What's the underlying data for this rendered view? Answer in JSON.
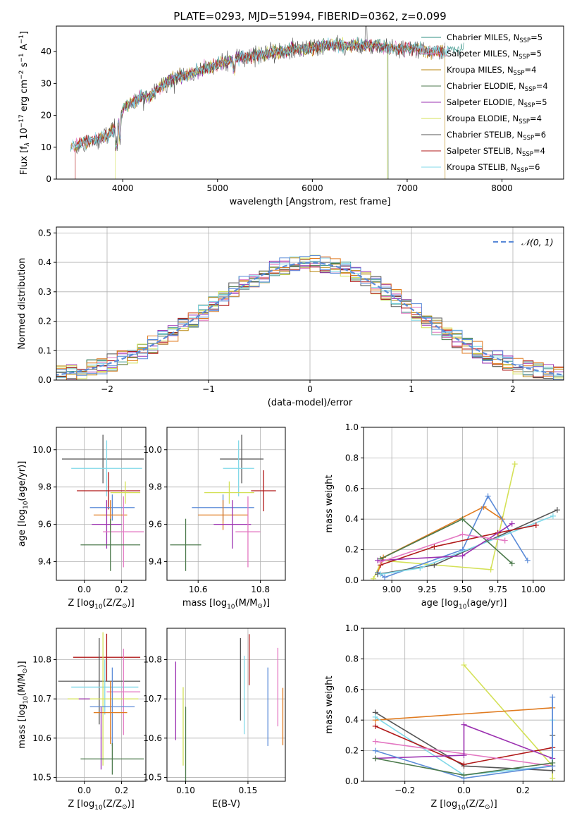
{
  "figure_title": "PLATE=0293, MJD=51994, FIBERID=0362, z=0.099",
  "colors": {
    "Chabrier MILES": "#2f8f83",
    "Salpeter MILES": "#e377c2",
    "Kroupa MILES": "#b8860b",
    "Chabrier ELODIE": "#4c7a4c",
    "Salpeter ELODIE": "#9b30b0",
    "Kroupa ELODIE": "#d4e157",
    "Chabrier STELIB": "#555555",
    "Salpeter STELIB": "#b01818",
    "Kroupa STELIB": "#80d8e8",
    "blue": "#5b8bd8",
    "orange": "#e07b20",
    "gaussian": "#5b8bd8"
  },
  "chart_data": [
    {
      "type": "line",
      "title": "PLATE=0293, MJD=51994, FIBERID=0362, z=0.099",
      "xlabel": "wavelength [Angstrom, rest frame]",
      "ylabel": "Flux [f_λ 10^-17 erg cm^-2 s^-1 A^-1]",
      "xlim": [
        3300,
        8650
      ],
      "ylim": [
        0,
        48
      ],
      "xticks": [
        "4000",
        "5000",
        "6000",
        "7000",
        "8000"
      ],
      "yticks": [
        "0",
        "10",
        "20",
        "30",
        "40"
      ],
      "legend_position": "top-right",
      "spectrum_anchor": {
        "x": [
          3450,
          3550,
          3650,
          3750,
          3850,
          3950,
          4000,
          4100,
          4200,
          4300,
          4400,
          4500,
          4600,
          4700,
          4800,
          4900,
          5000,
          5100,
          5200,
          5300,
          5400,
          5500,
          5600,
          5700,
          5800,
          5900,
          6000,
          6100,
          6200,
          6300,
          6400,
          6500,
          6600,
          6700,
          6800,
          6900,
          7000,
          7100,
          7200,
          7300,
          7400,
          7500,
          7600
        ],
        "y": [
          10,
          11,
          12,
          13,
          14,
          17,
          22,
          24,
          26,
          26,
          29,
          31,
          32,
          33,
          34,
          35,
          36,
          37,
          38,
          38,
          39,
          39,
          40,
          40,
          41,
          41,
          41,
          42,
          42,
          42,
          42,
          42,
          42,
          42,
          41,
          41,
          41,
          41,
          40,
          40,
          40,
          41,
          41
        ]
      },
      "series": [
        {
          "name": "Chabrier MILES",
          "nssp": "5",
          "xrange": [
            3450,
            7600
          ]
        },
        {
          "name": "Salpeter MILES",
          "nssp": "5",
          "xrange": [
            3450,
            7450
          ]
        },
        {
          "name": "Kroupa MILES",
          "nssp": "4",
          "xrange": [
            3450,
            7400
          ]
        },
        {
          "name": "Chabrier ELODIE",
          "nssp": "4",
          "xrange": [
            3900,
            6800
          ]
        },
        {
          "name": "Salpeter ELODIE",
          "nssp": "5",
          "xrange": [
            3900,
            6800
          ]
        },
        {
          "name": "Kroupa ELODIE",
          "nssp": "4",
          "xrange": [
            3920,
            6790
          ]
        },
        {
          "name": "Chabrier STELIB",
          "nssp": "6",
          "xrange": [
            3500,
            7400
          ]
        },
        {
          "name": "Salpeter STELIB",
          "nssp": "4",
          "xrange": [
            3500,
            7400
          ]
        },
        {
          "name": "Kroupa STELIB",
          "nssp": "6",
          "xrange": [
            3450,
            7450
          ]
        }
      ]
    },
    {
      "type": "line",
      "xlabel": "(data-model)/error",
      "ylabel": "Normed distribution",
      "xlim": [
        -2.5,
        2.5
      ],
      "ylim": [
        0,
        0.52
      ],
      "xticks": [
        "−2",
        "−1",
        "0",
        "1",
        "2"
      ],
      "yticks": [
        "0.0",
        "0.1",
        "0.2",
        "0.3",
        "0.4",
        "0.5"
      ],
      "grid": true,
      "legend_position": "top-right",
      "gaussian_label": "𝒩(0, 1)",
      "bin_width": 0.1,
      "series_colors": [
        "Chabrier MILES",
        "Salpeter MILES",
        "Kroupa MILES",
        "Chabrier ELODIE",
        "Salpeter ELODIE",
        "Kroupa ELODIE",
        "Chabrier STELIB",
        "Salpeter STELIB",
        "Kroupa STELIB",
        "orange",
        "blue"
      ]
    },
    {
      "type": "scatter",
      "xlabel": "Z [log10(Z/Z⊙)]",
      "ylabel": "age  [log10(age/yr)]",
      "xlim": [
        -0.15,
        0.33
      ],
      "ylim": [
        9.3,
        10.12
      ],
      "xticks": [
        "0.0",
        "0.2"
      ],
      "yticks": [
        "9.4",
        "9.6",
        "9.8",
        "10.0"
      ],
      "grid": true,
      "points": [
        {
          "x": 0.1,
          "y": 9.95,
          "xerr": 0.22,
          "yerr": 0.13,
          "color": "Chabrier STELIB"
        },
        {
          "x": 0.12,
          "y": 9.9,
          "xerr": 0.19,
          "yerr": 0.15,
          "color": "Kroupa STELIB"
        },
        {
          "x": 0.13,
          "y": 9.78,
          "xerr": 0.17,
          "yerr": 0.1,
          "color": "Salpeter STELIB"
        },
        {
          "x": 0.22,
          "y": 9.77,
          "xerr": 0.08,
          "yerr": 0.06,
          "color": "Kroupa ELODIE"
        },
        {
          "x": 0.15,
          "y": 9.69,
          "xerr": 0.12,
          "yerr": 0.07,
          "color": "blue"
        },
        {
          "x": 0.14,
          "y": 9.65,
          "xerr": 0.09,
          "yerr": 0.08,
          "color": "orange"
        },
        {
          "x": 0.12,
          "y": 9.6,
          "xerr": 0.08,
          "yerr": 0.13,
          "color": "Salpeter ELODIE"
        },
        {
          "x": 0.21,
          "y": 9.56,
          "xerr": 0.11,
          "yerr": 0.19,
          "color": "Salpeter MILES"
        },
        {
          "x": 0.14,
          "y": 9.49,
          "xerr": 0.16,
          "yerr": 0.14,
          "color": "Chabrier ELODIE"
        }
      ]
    },
    {
      "type": "scatter",
      "xlabel": "mass [log10(M/M⊙)]",
      "ylabel": "",
      "xlim": [
        10.5,
        10.88
      ],
      "ylim": [
        9.3,
        10.12
      ],
      "xticks": [
        "10.6",
        "10.8"
      ],
      "yticks": [
        "9.4",
        "9.6",
        "9.8",
        "10.0"
      ],
      "grid": true,
      "points": [
        {
          "x": 10.74,
          "y": 9.95,
          "xerr": 0.07,
          "yerr": 0.13,
          "color": "Chabrier STELIB"
        },
        {
          "x": 10.73,
          "y": 9.9,
          "xerr": 0.05,
          "yerr": 0.15,
          "color": "Kroupa STELIB"
        },
        {
          "x": 10.81,
          "y": 9.78,
          "xerr": 0.04,
          "yerr": 0.11,
          "color": "Salpeter STELIB"
        },
        {
          "x": 10.7,
          "y": 9.77,
          "xerr": 0.08,
          "yerr": 0.06,
          "color": "Kroupa ELODIE"
        },
        {
          "x": 10.68,
          "y": 9.69,
          "xerr": 0.1,
          "yerr": 0.07,
          "color": "blue"
        },
        {
          "x": 10.68,
          "y": 9.65,
          "xerr": 0.08,
          "yerr": 0.08,
          "color": "orange"
        },
        {
          "x": 10.71,
          "y": 9.6,
          "xerr": 0.06,
          "yerr": 0.13,
          "color": "Salpeter ELODIE"
        },
        {
          "x": 10.76,
          "y": 9.56,
          "xerr": 0.04,
          "yerr": 0.19,
          "color": "Salpeter MILES"
        },
        {
          "x": 10.56,
          "y": 9.49,
          "xerr": 0.05,
          "yerr": 0.14,
          "color": "Chabrier ELODIE"
        }
      ]
    },
    {
      "type": "line",
      "xlabel": "age  [log10(age/yr)]",
      "ylabel": "mass weight",
      "xlim": [
        8.8,
        10.22
      ],
      "ylim": [
        0,
        1
      ],
      "xticks": [
        "9.00",
        "9.25",
        "9.50",
        "9.75",
        "10.00"
      ],
      "yticks": [
        "0.0",
        "0.2",
        "0.4",
        "0.6",
        "0.8",
        "1.0"
      ],
      "grid": true,
      "series": [
        {
          "color": "Kroupa ELODIE",
          "x": [
            8.87,
            8.93,
            9.7,
            9.87
          ],
          "y": [
            0.01,
            0.13,
            0.07,
            0.76
          ]
        },
        {
          "color": "orange",
          "x": [
            8.9,
            8.94,
            9.65,
            9.78
          ],
          "y": [
            0.05,
            0.15,
            0.48,
            0.4
          ]
        },
        {
          "color": "blue",
          "x": [
            8.9,
            8.95,
            9.5,
            9.68,
            9.96
          ],
          "y": [
            0.05,
            0.02,
            0.2,
            0.55,
            0.13
          ]
        },
        {
          "color": "Chabrier STELIB",
          "x": [
            8.9,
            9.3,
            10.17
          ],
          "y": [
            0.04,
            0.1,
            0.46
          ]
        },
        {
          "color": "Kroupa STELIB",
          "x": [
            8.92,
            9.2,
            10.14
          ],
          "y": [
            0.04,
            0.08,
            0.42
          ]
        },
        {
          "color": "Salpeter STELIB",
          "x": [
            8.92,
            9.3,
            9.75,
            10.02
          ],
          "y": [
            0.1,
            0.22,
            0.31,
            0.36
          ]
        },
        {
          "color": "Salpeter ELODIE",
          "x": [
            8.9,
            9.5,
            9.85
          ],
          "y": [
            0.13,
            0.16,
            0.37
          ]
        },
        {
          "color": "Chabrier ELODIE",
          "x": [
            8.92,
            9.5,
            9.85
          ],
          "y": [
            0.14,
            0.4,
            0.11
          ]
        },
        {
          "color": "Salpeter MILES",
          "x": [
            8.92,
            9.5,
            9.8
          ],
          "y": [
            0.12,
            0.3,
            0.26
          ]
        }
      ]
    },
    {
      "type": "scatter",
      "xlabel": "Z [log10(Z/Z⊙)]",
      "ylabel": "mass [log10(M/M⊙)]",
      "xlim": [
        -0.15,
        0.33
      ],
      "ylim": [
        10.49,
        10.88
      ],
      "xticks": [
        "0.0",
        "0.2"
      ],
      "yticks": [
        "10.5",
        "10.6",
        "10.7",
        "10.8"
      ],
      "grid": true,
      "points": [
        {
          "x": 0.12,
          "y": 10.806,
          "xerr": 0.18,
          "yerr": 0.06,
          "color": "Salpeter STELIB"
        },
        {
          "x": 0.08,
          "y": 10.745,
          "xerr": 0.22,
          "yerr": 0.11,
          "color": "Chabrier STELIB"
        },
        {
          "x": 0.11,
          "y": 10.73,
          "xerr": 0.18,
          "yerr": 0.07,
          "color": "Kroupa STELIB"
        },
        {
          "x": 0.1,
          "y": 10.7,
          "xerr": 0.19,
          "yerr": 0.17,
          "color": "Kroupa ELODIE"
        },
        {
          "x": 0.0,
          "y": 10.7,
          "xerr": 0.03,
          "yerr": 0.0,
          "color": "Salpeter ELODIE"
        },
        {
          "x": 0.21,
          "y": 10.718,
          "xerr": 0.09,
          "yerr": 0.11,
          "color": "Salpeter MILES"
        },
        {
          "x": 0.15,
          "y": 10.68,
          "xerr": 0.12,
          "yerr": 0.1,
          "color": "blue"
        },
        {
          "x": 0.14,
          "y": 10.665,
          "xerr": 0.09,
          "yerr": 0.08,
          "color": "orange"
        },
        {
          "x": 0.09,
          "y": 10.6,
          "xerr": 0.0,
          "yerr": 0.08,
          "color": "Salpeter ELODIE"
        },
        {
          "x": 0.15,
          "y": 10.547,
          "xerr": 0.17,
          "yerr": 0.04,
          "color": "Chabrier ELODIE"
        }
      ]
    },
    {
      "type": "scatter",
      "xlabel": "E(B-V)",
      "ylabel": "",
      "xlim": [
        0.085,
        0.18
      ],
      "ylim": [
        10.49,
        10.88
      ],
      "xticks": [
        "0.10",
        "0.15"
      ],
      "yticks": [
        "10.5",
        "10.6",
        "10.7",
        "10.8"
      ],
      "grid": true,
      "points": [
        {
          "x": 0.092,
          "y": 10.695,
          "yerr": 0.1,
          "color": "Salpeter ELODIE"
        },
        {
          "x": 0.098,
          "y": 10.63,
          "yerr": 0.1,
          "color": "Kroupa ELODIE"
        },
        {
          "x": 0.1,
          "y": 10.58,
          "yerr": 0.1,
          "color": "Chabrier ELODIE"
        },
        {
          "x": 0.144,
          "y": 10.75,
          "yerr": 0.105,
          "color": "Chabrier STELIB"
        },
        {
          "x": 0.147,
          "y": 10.71,
          "yerr": 0.1,
          "color": "Kroupa STELIB"
        },
        {
          "x": 0.151,
          "y": 10.8,
          "yerr": 0.065,
          "color": "Salpeter STELIB"
        },
        {
          "x": 0.166,
          "y": 10.68,
          "yerr": 0.1,
          "color": "blue"
        },
        {
          "x": 0.174,
          "y": 10.73,
          "yerr": 0.1,
          "color": "Salpeter MILES"
        },
        {
          "x": 0.178,
          "y": 10.655,
          "yerr": 0.073,
          "color": "orange"
        }
      ]
    },
    {
      "type": "line",
      "xlabel": "Z [log10(Z/Z⊙)]",
      "ylabel": "mass weight",
      "xlim": [
        -0.34,
        0.34
      ],
      "ylim": [
        0,
        1
      ],
      "xticks": [
        "−0.2",
        "0.0",
        "0.2"
      ],
      "yticks": [
        "0.0",
        "0.2",
        "0.4",
        "0.6",
        "0.8",
        "1.0"
      ],
      "grid": true,
      "series": [
        {
          "color": "Kroupa ELODIE",
          "x": [
            0.0,
            0.3,
            0.3
          ],
          "y": [
            0.76,
            0.1,
            0.02
          ]
        },
        {
          "color": "Chabrier STELIB",
          "x": [
            -0.3,
            0.0,
            0.3,
            0.3
          ],
          "y": [
            0.45,
            0.1,
            0.07,
            0.3
          ]
        },
        {
          "color": "orange",
          "x": [
            -0.3,
            0.3
          ],
          "y": [
            0.4,
            0.48
          ]
        },
        {
          "color": "Kroupa STELIB",
          "x": [
            -0.3,
            0.0,
            0.3,
            0.3
          ],
          "y": [
            0.42,
            0.04,
            0.1,
            0.4
          ]
        },
        {
          "color": "Salpeter STELIB",
          "x": [
            -0.3,
            0.0,
            0.3
          ],
          "y": [
            0.36,
            0.11,
            0.22
          ]
        },
        {
          "color": "Salpeter MILES",
          "x": [
            -0.3,
            0.3
          ],
          "y": [
            0.26,
            0.1
          ]
        },
        {
          "color": "Salpeter ELODIE",
          "x": [
            -0.3,
            0.0,
            0.0,
            0.3
          ],
          "y": [
            0.15,
            0.17,
            0.37,
            0.15
          ]
        },
        {
          "color": "blue",
          "x": [
            -0.3,
            0.0,
            0.3,
            0.3
          ],
          "y": [
            0.2,
            0.02,
            0.1,
            0.55
          ]
        },
        {
          "color": "Chabrier ELODIE",
          "x": [
            -0.3,
            0.0,
            0.3
          ],
          "y": [
            0.15,
            0.04,
            0.12
          ]
        }
      ]
    }
  ]
}
